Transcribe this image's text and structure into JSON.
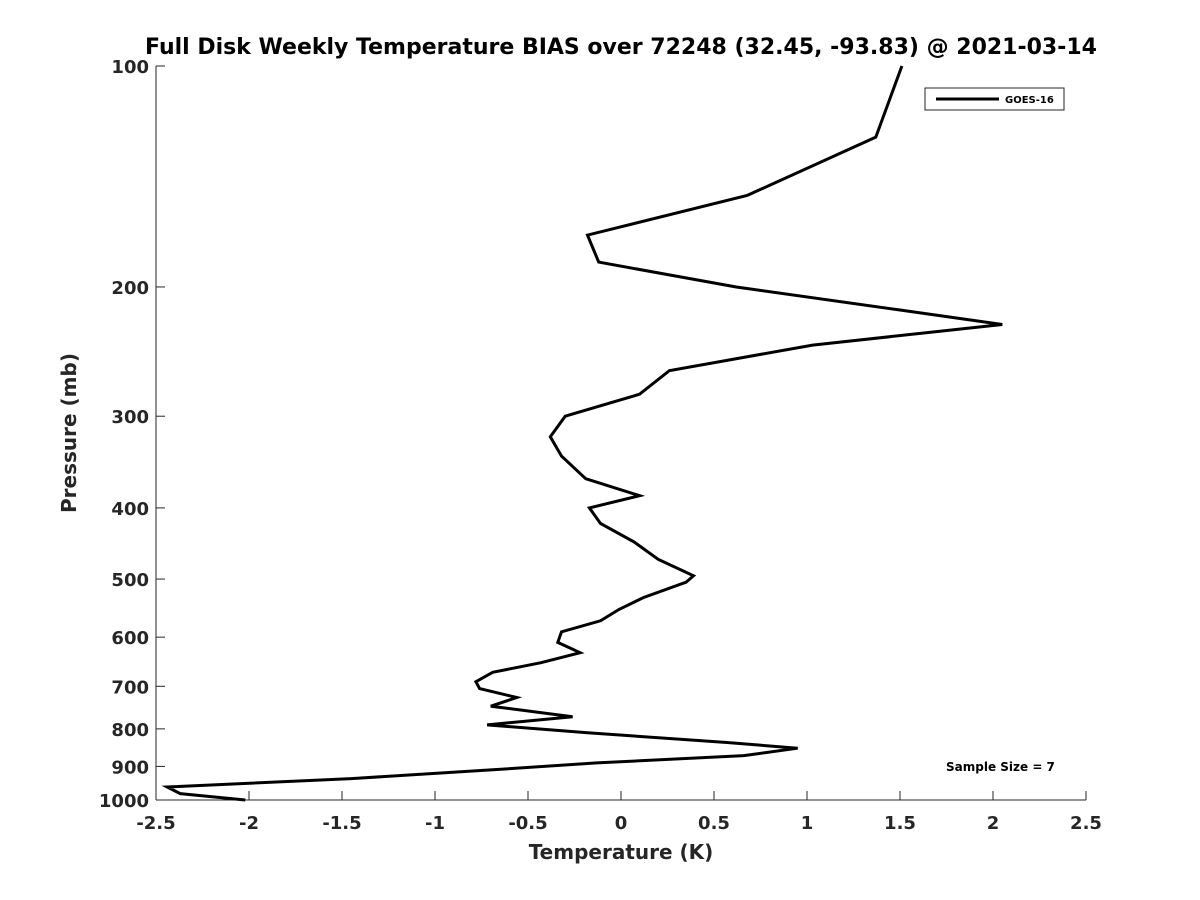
{
  "chart_data": {
    "type": "line",
    "title": "Full Disk Weekly Temperature BIAS over 72248 (32.45, -93.83) @ 2021-03-14",
    "xlabel": "Temperature (K)",
    "ylabel": "Pressure (mb)",
    "xlim": [
      -2.5,
      2.5
    ],
    "ylim": [
      1000,
      100
    ],
    "y_scale": "log",
    "x_ticks": [
      "-2.5",
      "-2",
      "-1.5",
      "-1",
      "-0.5",
      "0",
      "0.5",
      "1",
      "1.5",
      "2",
      "2.5"
    ],
    "y_ticks": [
      "100",
      "200",
      "300",
      "400",
      "500",
      "600",
      "700",
      "800",
      "900",
      "1000"
    ],
    "grid": false,
    "legend_position": "top-right",
    "annotation": "Sample Size = 7",
    "series": [
      {
        "name": "GOES-16",
        "color": "#000000",
        "points": [
          {
            "p": 100,
            "t": 1.51
          },
          {
            "p": 125,
            "t": 1.37
          },
          {
            "p": 150,
            "t": 0.68
          },
          {
            "p": 170,
            "t": -0.18
          },
          {
            "p": 185,
            "t": -0.12
          },
          {
            "p": 200,
            "t": 0.62
          },
          {
            "p": 215,
            "t": 1.5
          },
          {
            "p": 225,
            "t": 2.05
          },
          {
            "p": 240,
            "t": 1.03
          },
          {
            "p": 260,
            "t": 0.26
          },
          {
            "p": 280,
            "t": 0.1
          },
          {
            "p": 300,
            "t": -0.3
          },
          {
            "p": 320,
            "t": -0.38
          },
          {
            "p": 340,
            "t": -0.32
          },
          {
            "p": 365,
            "t": -0.19
          },
          {
            "p": 385,
            "t": 0.1
          },
          {
            "p": 400,
            "t": -0.17
          },
          {
            "p": 420,
            "t": -0.11
          },
          {
            "p": 445,
            "t": 0.07
          },
          {
            "p": 470,
            "t": 0.2
          },
          {
            "p": 495,
            "t": 0.39
          },
          {
            "p": 505,
            "t": 0.35
          },
          {
            "p": 530,
            "t": 0.12
          },
          {
            "p": 550,
            "t": -0.01
          },
          {
            "p": 570,
            "t": -0.11
          },
          {
            "p": 590,
            "t": -0.32
          },
          {
            "p": 610,
            "t": -0.34
          },
          {
            "p": 630,
            "t": -0.22
          },
          {
            "p": 650,
            "t": -0.43
          },
          {
            "p": 670,
            "t": -0.69
          },
          {
            "p": 690,
            "t": -0.78
          },
          {
            "p": 705,
            "t": -0.76
          },
          {
            "p": 725,
            "t": -0.56
          },
          {
            "p": 745,
            "t": -0.7
          },
          {
            "p": 770,
            "t": -0.26
          },
          {
            "p": 790,
            "t": -0.72
          },
          {
            "p": 810,
            "t": -0.18
          },
          {
            "p": 835,
            "t": 0.57
          },
          {
            "p": 850,
            "t": 0.95
          },
          {
            "p": 870,
            "t": 0.66
          },
          {
            "p": 890,
            "t": -0.13
          },
          {
            "p": 910,
            "t": -0.7
          },
          {
            "p": 935,
            "t": -1.45
          },
          {
            "p": 960,
            "t": -2.44
          },
          {
            "p": 980,
            "t": -2.37
          },
          {
            "p": 1000,
            "t": -2.02
          }
        ]
      }
    ]
  }
}
